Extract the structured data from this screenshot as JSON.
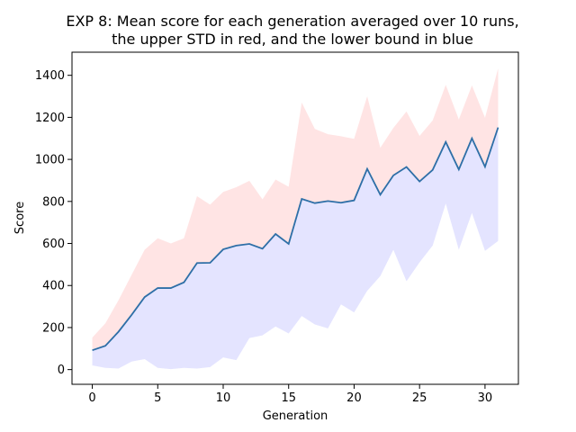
{
  "chart_data": {
    "type": "line",
    "title": [
      "EXP 8: Mean score for each generation averaged over 10 runs,",
      "the upper STD in red, and the lower bound in blue"
    ],
    "xlabel": "Generation",
    "ylabel": "Score",
    "xlim": [
      -1.55,
      32.55
    ],
    "ylim": [
      -70,
      1510
    ],
    "xticks": [
      0,
      5,
      10,
      15,
      20,
      25,
      30
    ],
    "yticks": [
      0,
      200,
      400,
      600,
      800,
      1000,
      1200,
      1400
    ],
    "x": [
      0,
      1,
      2,
      3,
      4,
      5,
      6,
      7,
      8,
      9,
      10,
      11,
      12,
      13,
      14,
      15,
      16,
      17,
      18,
      19,
      20,
      21,
      22,
      23,
      24,
      25,
      26,
      27,
      28,
      29,
      30,
      31
    ],
    "series": [
      {
        "role": "mean",
        "color": "#2e6fa7",
        "values": [
          92,
          113,
          180,
          260,
          345,
          388,
          388,
          415,
          507,
          508,
          572,
          590,
          598,
          575,
          645,
          598,
          812,
          792,
          802,
          794,
          805,
          955,
          832,
          924,
          964,
          895,
          950,
          1083,
          952,
          1100,
          965,
          1152
        ]
      },
      {
        "role": "upper",
        "color": "#ffb3b3",
        "values": [
          152,
          220,
          330,
          450,
          570,
          625,
          600,
          625,
          825,
          785,
          845,
          868,
          898,
          810,
          904,
          870,
          1270,
          1145,
          1120,
          1110,
          1098,
          1300,
          1055,
          1150,
          1228,
          1112,
          1185,
          1355,
          1190,
          1352,
          1198,
          1433
        ]
      },
      {
        "role": "lower",
        "color": "#b3b3ff",
        "values": [
          20,
          8,
          5,
          38,
          50,
          8,
          2,
          8,
          5,
          12,
          58,
          45,
          150,
          163,
          205,
          172,
          255,
          215,
          196,
          310,
          272,
          375,
          445,
          570,
          420,
          510,
          590,
          790,
          570,
          745,
          565,
          612
        ]
      }
    ]
  }
}
